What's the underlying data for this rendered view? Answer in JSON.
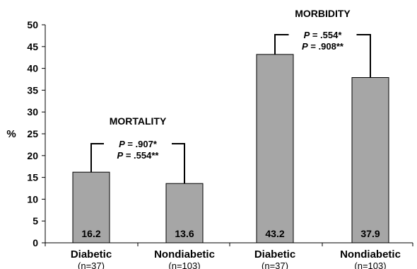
{
  "chart_data": {
    "type": "bar",
    "ylabel": "%",
    "ylim": [
      0,
      50
    ],
    "yticks": [
      0,
      5,
      10,
      15,
      20,
      25,
      30,
      35,
      40,
      45,
      50
    ],
    "grid": false,
    "bar_color": "#a6a6a6",
    "bars": [
      {
        "label": "Diabetic",
        "sublabel": "(n=37)",
        "value": 16.2,
        "value_text": "16.2"
      },
      {
        "label": "Nondiabetic",
        "sublabel": "(n=103)",
        "value": 13.6,
        "value_text": "13.6"
      },
      {
        "label": "Diabetic",
        "sublabel": "(n=37)",
        "value": 43.2,
        "value_text": "43.2"
      },
      {
        "label": "Nondiabetic",
        "sublabel": "(n=103)",
        "value": 37.9,
        "value_text": "37.9"
      }
    ],
    "groups": [
      {
        "title": "MORTALITY",
        "bars": [
          0,
          1
        ],
        "pvalues": [
          {
            "p": "P",
            "text": " = .907*"
          },
          {
            "p": "P",
            "text": " = .554**"
          }
        ]
      },
      {
        "title": "MORBIDITY",
        "bars": [
          2,
          3
        ],
        "pvalues": [
          {
            "p": "P",
            "text": " = .554*"
          },
          {
            "p": "P",
            "text": " = .908**"
          }
        ]
      }
    ]
  }
}
